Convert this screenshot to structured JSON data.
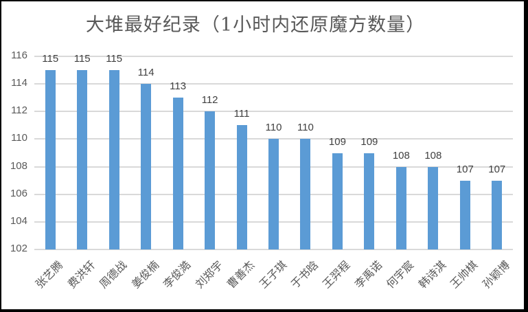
{
  "chart_data": {
    "type": "bar",
    "title": "大堆最好纪录（1小时内还原魔方数量）",
    "xlabel": "",
    "ylabel": "",
    "ylim": [
      102,
      116
    ],
    "yticks": [
      102,
      104,
      106,
      108,
      110,
      112,
      114,
      116
    ],
    "grid": true,
    "legend": null,
    "bar_color": "#5b9bd5",
    "data_labels": true,
    "categories": [
      "张艺腾",
      "费洪轩",
      "周德战",
      "姜俊楠",
      "李俊澔",
      "刘郑宇",
      "曹善杰",
      "王子琪",
      "于书晗",
      "王羿程",
      "李禹诺",
      "何宇宸",
      "韩诗淇",
      "王帅棋",
      "孙颖博"
    ],
    "values": [
      115,
      115,
      115,
      114,
      113,
      112,
      111,
      110,
      110,
      109,
      109,
      108,
      108,
      107,
      107
    ]
  }
}
